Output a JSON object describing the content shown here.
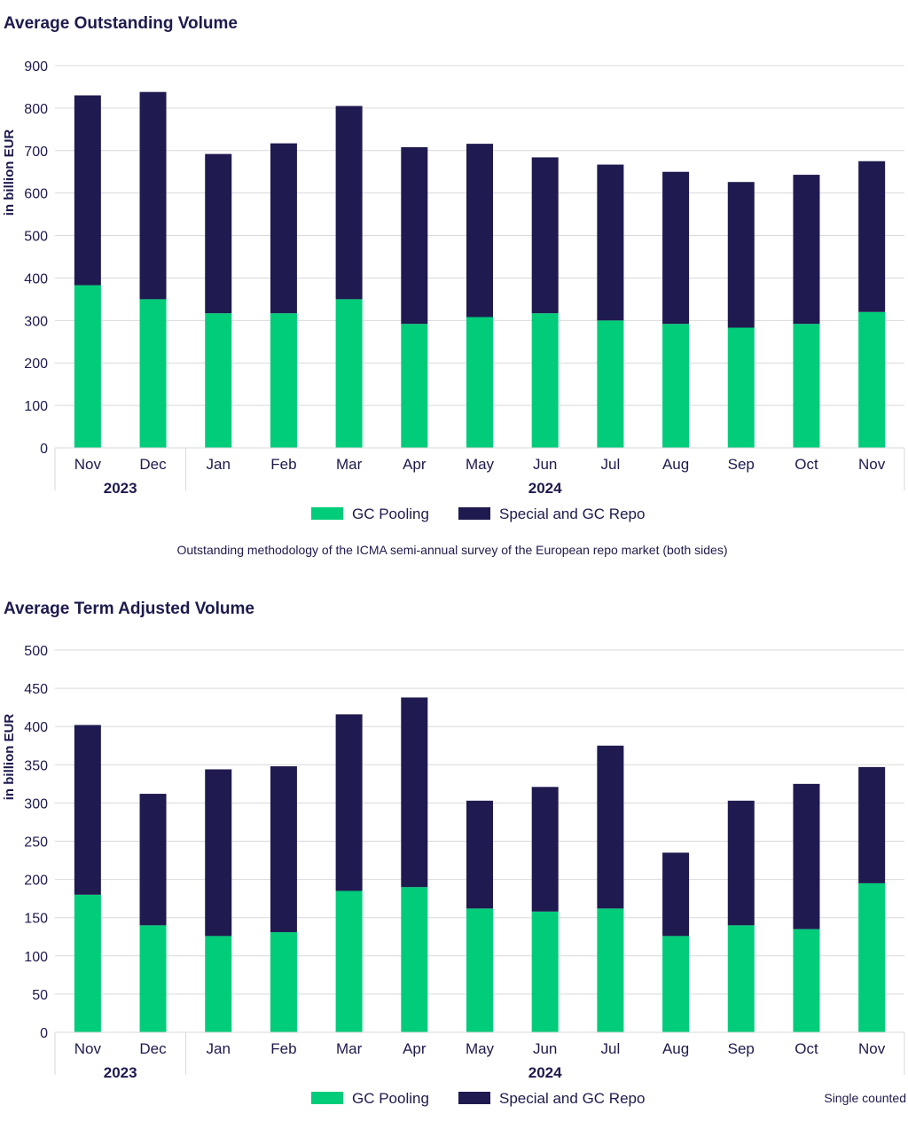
{
  "colors": {
    "gc_pooling": "#00cc7a",
    "special_gc_repo": "#1f1a4f",
    "grid": "#d9d9d9",
    "text": "#1d1a4d"
  },
  "chart_data": [
    {
      "type": "bar",
      "stacked": true,
      "title": "Average Outstanding Volume",
      "ylabel": "in billion EUR",
      "xlabel": "",
      "ylim": [
        0,
        900
      ],
      "yticks": [
        0,
        100,
        200,
        300,
        400,
        500,
        600,
        700,
        800,
        900
      ],
      "categories": [
        "Nov",
        "Dec",
        "Jan",
        "Feb",
        "Mar",
        "Apr",
        "May",
        "Jun",
        "Jul",
        "Aug",
        "Sep",
        "Oct",
        "Nov"
      ],
      "groups": [
        {
          "label": "2023",
          "count": 2
        },
        {
          "label": "2024",
          "count": 11
        }
      ],
      "series": [
        {
          "name": "GC Pooling",
          "values": [
            383,
            350,
            317,
            317,
            350,
            292,
            308,
            317,
            300,
            292,
            283,
            292,
            320
          ]
        },
        {
          "name": "Special and GC Repo",
          "values": [
            447,
            488,
            375,
            400,
            455,
            416,
            408,
            367,
            367,
            358,
            343,
            351,
            355
          ]
        }
      ],
      "legend": "bottom",
      "grid": true,
      "footnote": "Outstanding methodology of the ICMA semi-annual survey of the European repo market (both sides)"
    },
    {
      "type": "bar",
      "stacked": true,
      "title": "Average Term Adjusted Volume",
      "ylabel": "in billion EUR",
      "xlabel": "",
      "ylim": [
        0,
        500
      ],
      "yticks": [
        0,
        50,
        100,
        150,
        200,
        250,
        300,
        350,
        400,
        450,
        500
      ],
      "categories": [
        "Nov",
        "Dec",
        "Jan",
        "Feb",
        "Mar",
        "Apr",
        "May",
        "Jun",
        "Jul",
        "Aug",
        "Sep",
        "Oct",
        "Nov"
      ],
      "groups": [
        {
          "label": "2023",
          "count": 2
        },
        {
          "label": "2024",
          "count": 11
        }
      ],
      "series": [
        {
          "name": "GC Pooling",
          "values": [
            180,
            140,
            126,
            131,
            185,
            190,
            162,
            158,
            162,
            126,
            140,
            135,
            195
          ]
        },
        {
          "name": "Special and GC Repo",
          "values": [
            222,
            172,
            218,
            217,
            231,
            248,
            141,
            163,
            213,
            109,
            163,
            190,
            152
          ]
        }
      ],
      "legend": "bottom",
      "grid": true,
      "footnote": "Single counted"
    }
  ]
}
